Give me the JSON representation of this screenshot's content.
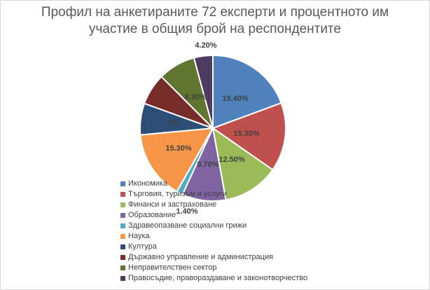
{
  "chart_data": {
    "type": "pie",
    "title_lines": [
      "Профил на анкетираните 72 експерти и процентното им",
      "участие в общия брой на респондентите"
    ],
    "slices": [
      {
        "name": "Икономика",
        "value": 19.4,
        "label": "19.40%",
        "color": "#4f81bd"
      },
      {
        "name": "Търговия, туризъм и услуги",
        "value": 15.3,
        "label": "15.30%",
        "color": "#c0504d"
      },
      {
        "name": "Финанси и застраховане",
        "value": 12.5,
        "label": "12.50%",
        "color": "#9bbb59"
      },
      {
        "name": "Образование",
        "value": 9.7,
        "label": "9.70%",
        "color": "#8064a2"
      },
      {
        "name": "Здравеопазване социални грижи",
        "value": 1.4,
        "label": "1.40%",
        "color": "#4bacc6"
      },
      {
        "name": "Наука",
        "value": 15.3,
        "label": "15.30%",
        "color": "#f79646"
      },
      {
        "name": "Култура",
        "value": 7.0,
        "label": "7%",
        "color": "#2c4d75"
      },
      {
        "name": "Държавно управление и администрация",
        "value": 7.0,
        "label": "",
        "color": "#772c2a"
      },
      {
        "name": "Неправителствен сектор",
        "value": 8.3,
        "label": "8.30%",
        "color": "#5f7530"
      },
      {
        "name": "Правосъдие, правораздаване и законотворчество",
        "value": 4.2,
        "label": "4.20%",
        "color": "#4d3b62"
      }
    ],
    "legend_position": "bottom-left",
    "label_style": "bold-percent"
  }
}
